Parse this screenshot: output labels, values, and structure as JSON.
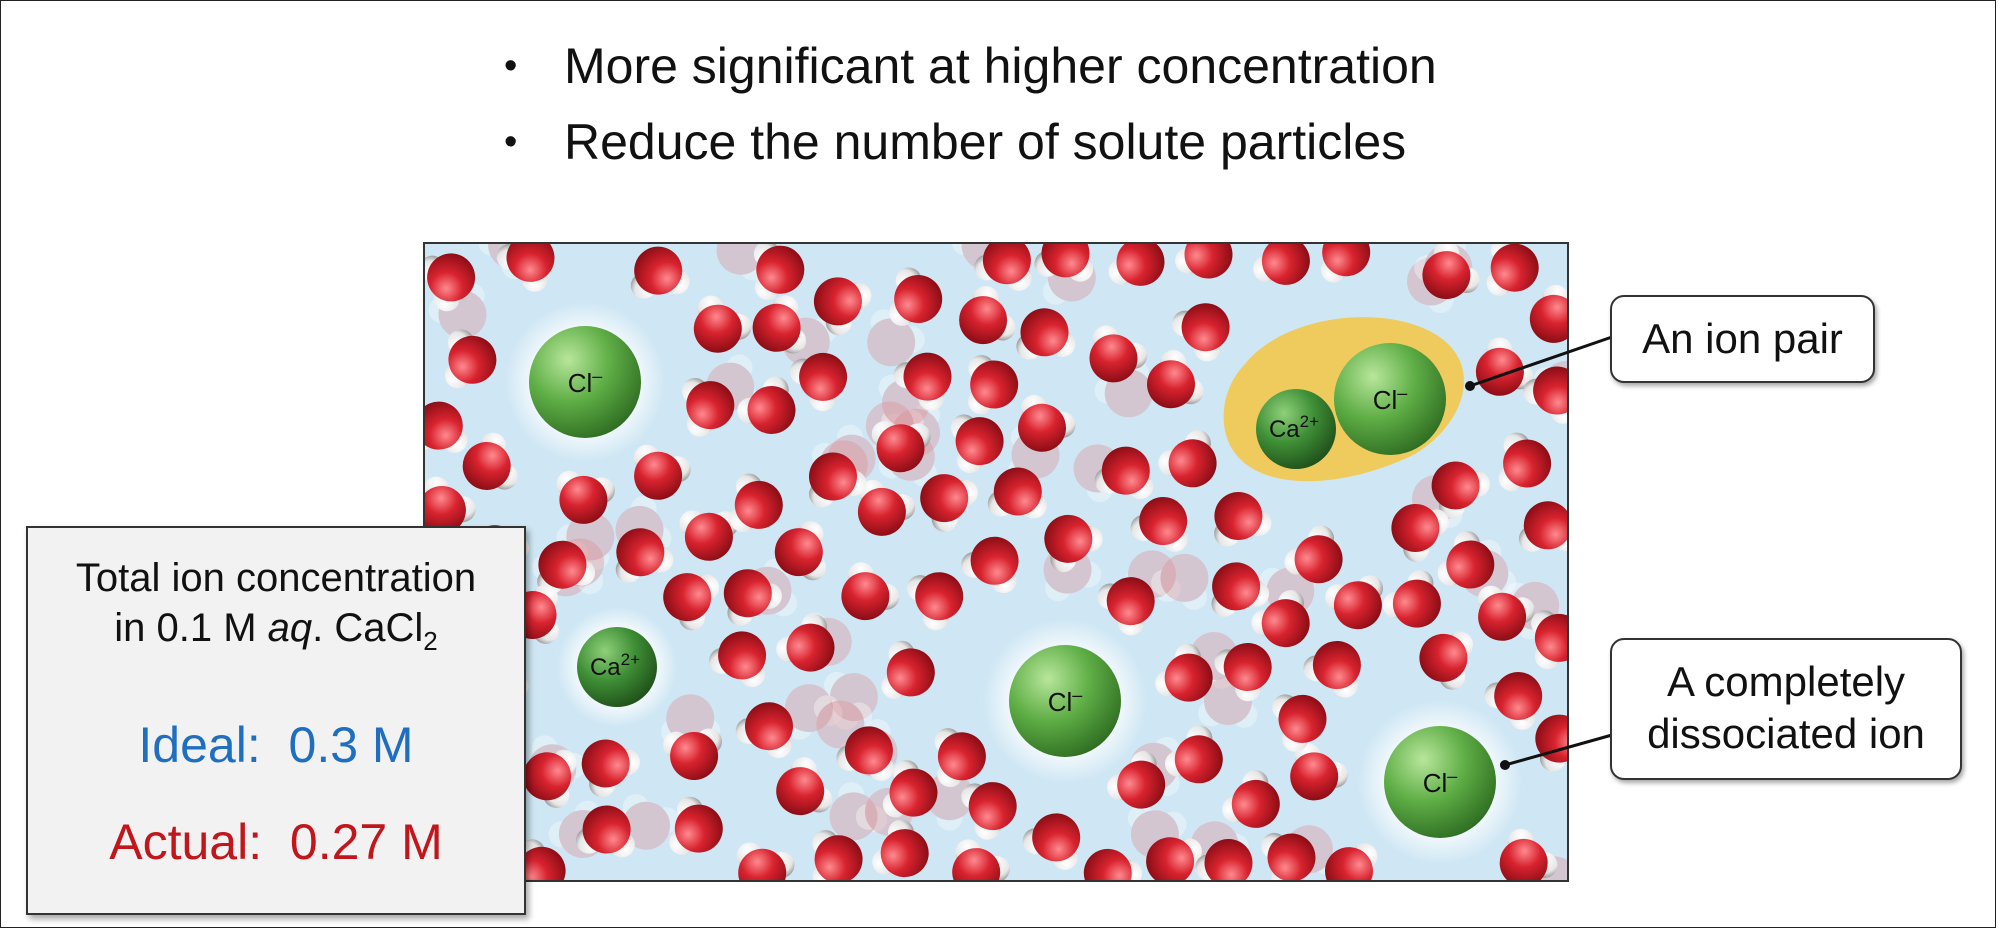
{
  "bullets": [
    "More significant at higher concentration",
    "Reduce the number of solute particles"
  ],
  "callouts": {
    "ion_pair": "An ion pair",
    "dissociated_line1": "A completely",
    "dissociated_line2": "dissociated ion"
  },
  "ions": {
    "chloride": "Cl",
    "chloride_charge": "–",
    "calcium": "Ca",
    "calcium_charge": "2+"
  },
  "infobox": {
    "line1": "Total ion concentration",
    "line2_prefix": "in 0.1 M ",
    "line2_italic": "aq",
    "line2_mid": ". CaCl",
    "line2_sub": "2",
    "ideal_label": "Ideal:",
    "ideal_value": "0.3 M",
    "actual_label": "Actual:",
    "actual_value": "0.27 M"
  },
  "colors": {
    "water_bg": "#cfe7f4",
    "oxygen": "#d8232f",
    "hydrogen": "#ffffff",
    "ion_green": "#5fae46",
    "ion_pair_glow": "#f4c542",
    "ideal": "#1f6fc0",
    "actual": "#c0161c"
  }
}
